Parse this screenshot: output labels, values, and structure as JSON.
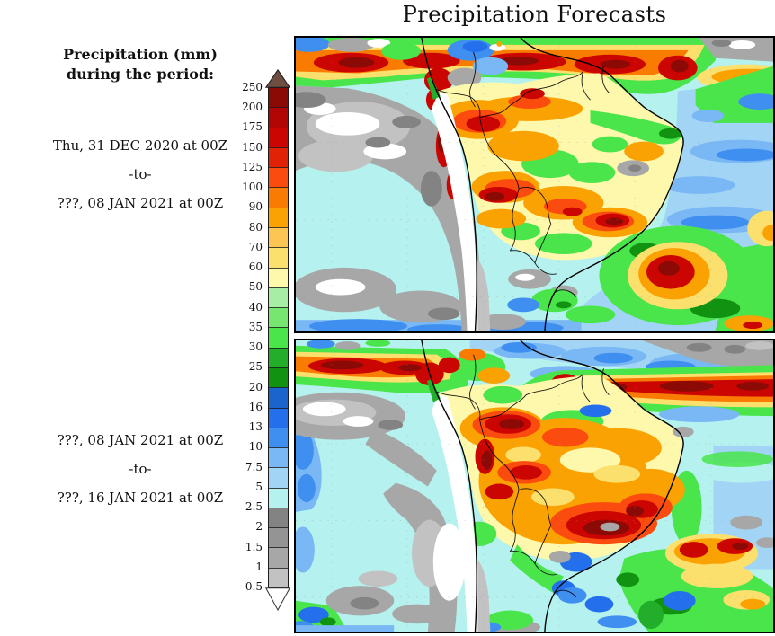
{
  "title": "Precipitation Forecasts",
  "sidebar": {
    "heading_line1": "Precipitation (mm)",
    "heading_line2": "during the period:",
    "period1": {
      "start": "Thu, 31 DEC 2020 at 00Z",
      "separator": "-to-",
      "end": "???, 08 JAN 2021 at 00Z"
    },
    "period2": {
      "start": "???, 08 JAN 2021 at 00Z",
      "separator": "-to-",
      "end": "???, 16 JAN 2021 at 00Z"
    }
  },
  "colorbar": {
    "units": "mm",
    "levels": [
      "250",
      "200",
      "175",
      "150",
      "125",
      "100",
      "90",
      "80",
      "70",
      "60",
      "50",
      "40",
      "35",
      "30",
      "25",
      "20",
      "16",
      "13",
      "10",
      "7.5",
      "5",
      "2.5",
      "2",
      "1.5",
      "1",
      "0.5"
    ],
    "band_colors_top_to_bottom": [
      "#8b0a05",
      "#b10603",
      "#cb0502",
      "#e22207",
      "#fb4b0e",
      "#fa7b01",
      "#fba203",
      "#fdc553",
      "#fce06e",
      "#fdf8ab",
      "#a8eda6",
      "#77e671",
      "#49e54b",
      "#22ae2b",
      "#119311",
      "#1c64cd",
      "#2470ec",
      "#3f8ff0",
      "#79b8f4",
      "#a2d5f5",
      "#b5f1ee",
      "#838383",
      "#949494",
      "#a7a7a7",
      "#c2c2c2"
    ],
    "overflow_top_color": "#6f4d42",
    "underflow_bottom_color": "#ffffff"
  },
  "chart_data": {
    "type": "heatmap",
    "title": "Precipitation Forecasts",
    "variable": "Precipitation (mm) during the period",
    "region": "South America and adjacent oceans",
    "legend_position": "left",
    "legend_levels_mm": [
      0.5,
      1,
      1.5,
      2,
      2.5,
      5,
      7.5,
      10,
      13,
      16,
      20,
      25,
      30,
      35,
      40,
      50,
      60,
      70,
      80,
      90,
      100,
      125,
      150,
      175,
      200,
      250
    ],
    "legend_colors_low_to_high": [
      "#ffffff",
      "#c2c2c2",
      "#a7a7a7",
      "#949494",
      "#838383",
      "#b5f1ee",
      "#a2d5f5",
      "#79b8f4",
      "#3f8ff0",
      "#2470ec",
      "#1c64cd",
      "#119311",
      "#22ae2b",
      "#49e54b",
      "#77e671",
      "#a8eda6",
      "#fdf8ab",
      "#fce06e",
      "#fdc553",
      "#fba203",
      "#fa7b01",
      "#fb4b0e",
      "#e22207",
      "#cb0502",
      "#b10603",
      "#8b0a05",
      "#6f4d42"
    ],
    "panels": [
      {
        "index": 1,
        "period_start": "Thu, 31 DEC 2020 at 00Z",
        "period_end": "???, 08 JAN 2021 at 00Z",
        "description": "Heavy precipitation (100-250+ mm) along the ITCZ and over the Amazon basin and southeast Brazil; dry gray zone (<2.5 mm) over the southeast Pacific"
      },
      {
        "index": 2,
        "period_start": "???, 08 JAN 2021 at 00Z",
        "period_end": "???, 16 JAN 2021 at 00Z",
        "description": "Intense rainfall band across the tropical Atlantic and a large 100-250 mm maximum over central and southeastern Brazil; dry zones off Chile and in the southeast Pacific"
      }
    ]
  }
}
